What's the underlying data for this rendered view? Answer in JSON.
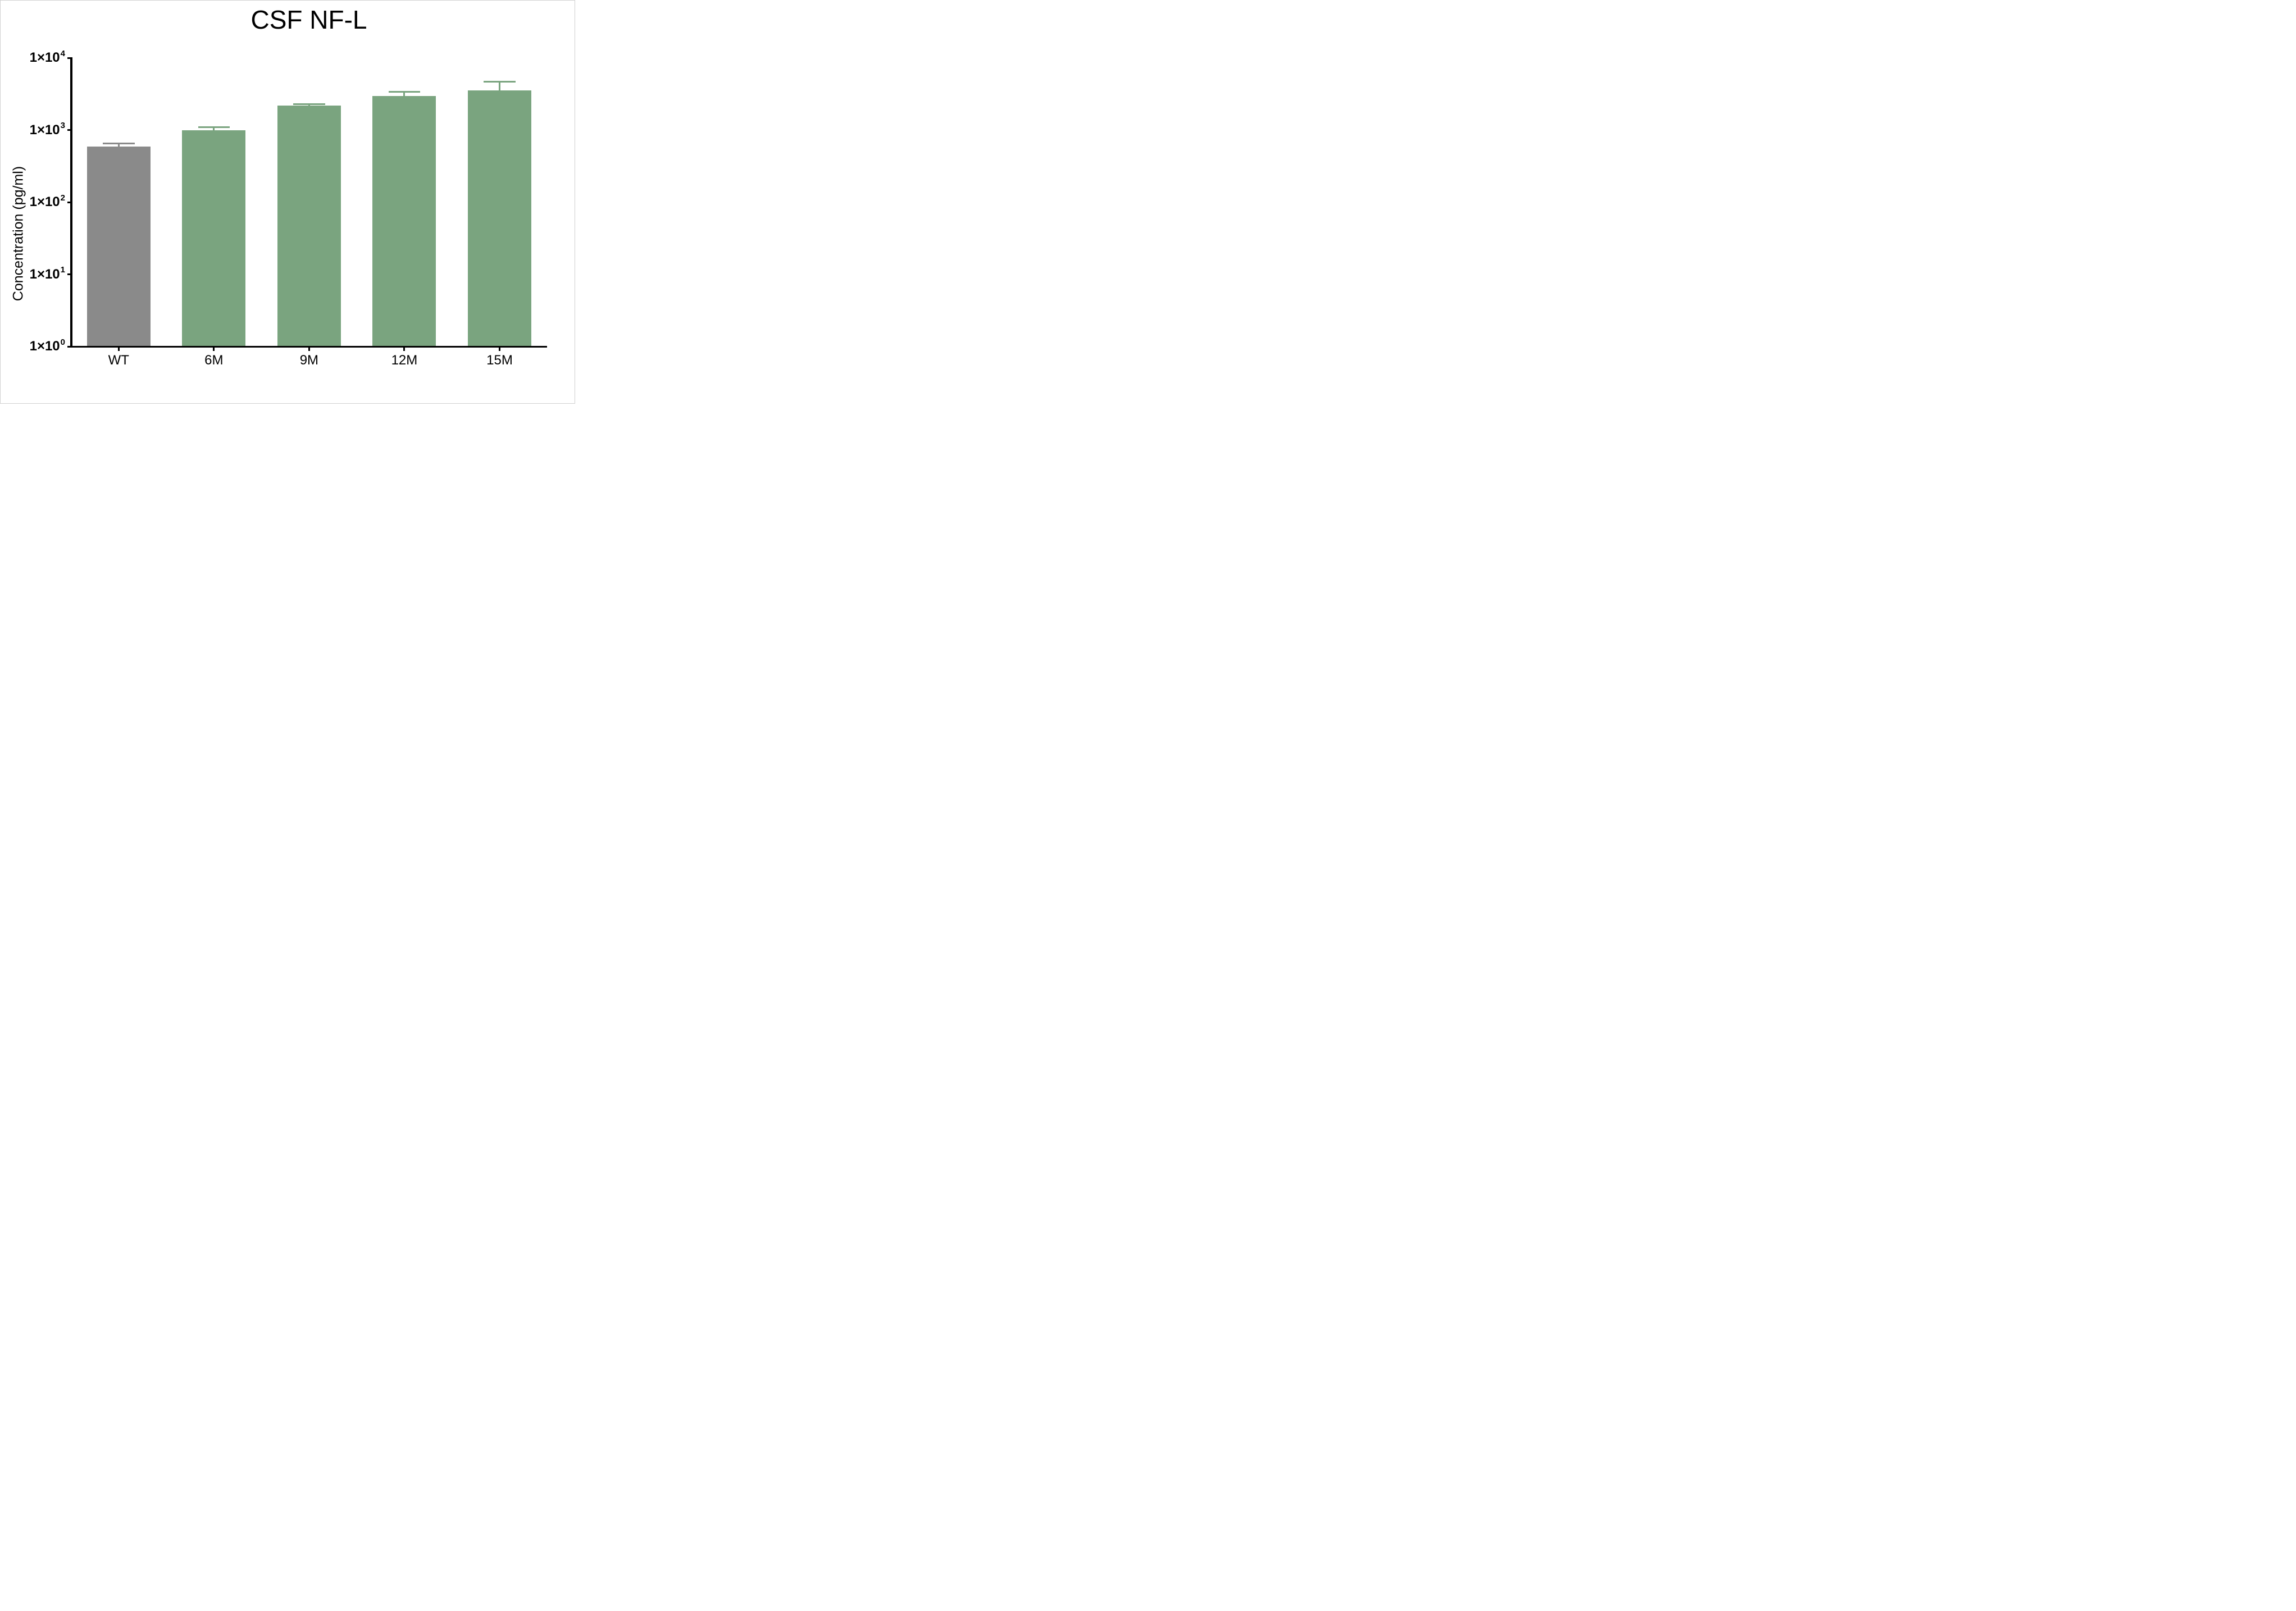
{
  "title": "CSF NF-L",
  "y_axis": {
    "label": "Concentration (pg/ml)",
    "ticks": [
      {
        "base": "1×10",
        "exp": "4",
        "value": 10000
      },
      {
        "base": "1×10",
        "exp": "3",
        "value": 1000
      },
      {
        "base": "1×10",
        "exp": "2",
        "value": 100
      },
      {
        "base": "1×10",
        "exp": "1",
        "value": 10
      },
      {
        "base": "1×10",
        "exp": "0",
        "value": 1
      }
    ]
  },
  "colors": {
    "wt_bar": "#8A8A8A",
    "mutant_bar": "#7AA47F",
    "axis": "#000000",
    "background": "#ffffff",
    "frame_border": "#d0d0d0"
  },
  "chart_data": {
    "type": "bar",
    "title": "CSF NF-L",
    "xlabel": "",
    "ylabel": "Concentration (pg/ml)",
    "yscale": "log",
    "ylim": [
      1,
      10000
    ],
    "grid": false,
    "legend": null,
    "categories": [
      "WT",
      "6M",
      "9M",
      "12M",
      "15M"
    ],
    "values": [
      590,
      1000,
      2200,
      3000,
      3550
    ],
    "error_upper_tops": [
      660,
      1110,
      2290,
      3380,
      4730
    ],
    "error_bars": "upper only, same color as bar, cap width is half bar width",
    "bar_colors": [
      "#8A8A8A",
      "#7AA47F",
      "#7AA47F",
      "#7AA47F",
      "#7AA47F"
    ]
  }
}
